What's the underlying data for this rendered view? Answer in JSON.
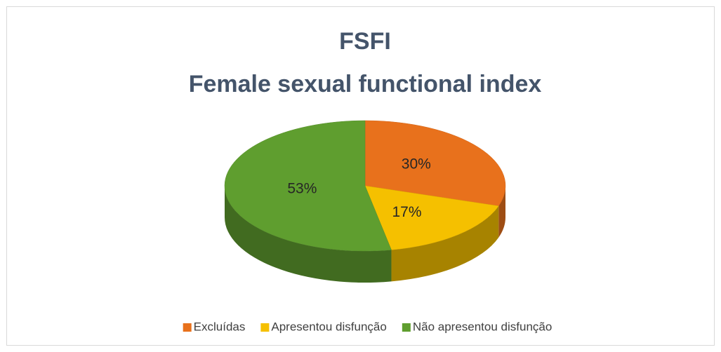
{
  "chart_data": {
    "type": "pie3d",
    "title": "FSFI",
    "subtitle": "Female sexual functional index",
    "categories": [
      "Excluídas",
      "Apresentou disfunção",
      "Não apresentou disfunção"
    ],
    "values": [
      30,
      17,
      53
    ],
    "value_labels": [
      "30%",
      "17%",
      "53%"
    ],
    "colors": [
      "#e8711c",
      "#f5c000",
      "#5f9e2f"
    ],
    "legend": "bottom"
  }
}
